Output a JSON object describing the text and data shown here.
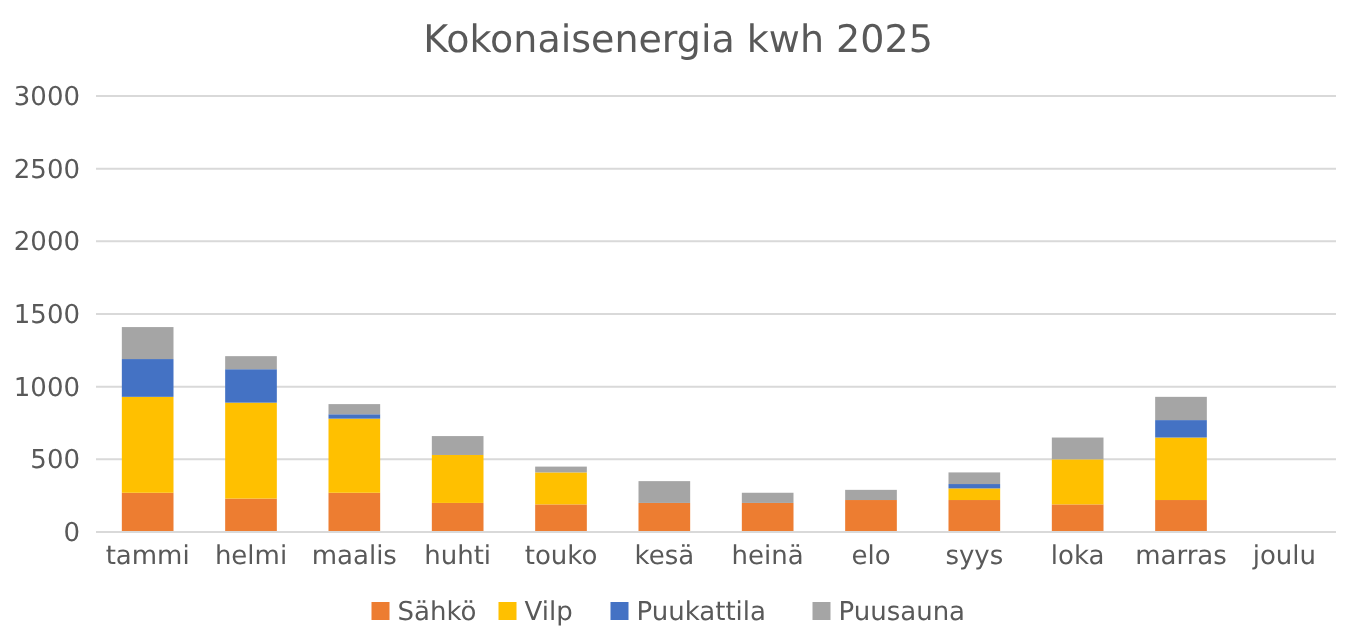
{
  "chart_data": {
    "type": "bar",
    "title": "Kokonaisenergia kwh 2025",
    "stacked": true,
    "categories": [
      "tammi",
      "helmi",
      "maalis",
      "huhti",
      "touko",
      "kesä",
      "heinä",
      "elo",
      "syys",
      "loka",
      "marras",
      "joulu"
    ],
    "series": [
      {
        "name": "Sähkö",
        "color": "#ed7d31",
        "values": [
          270,
          230,
          270,
          200,
          190,
          200,
          200,
          220,
          220,
          190,
          220,
          0
        ]
      },
      {
        "name": "Vilp",
        "color": "#ffc000",
        "values": [
          660,
          660,
          510,
          330,
          220,
          0,
          0,
          0,
          80,
          310,
          430,
          0
        ]
      },
      {
        "name": "Puukattila",
        "color": "#4472c4",
        "values": [
          260,
          230,
          30,
          0,
          0,
          0,
          0,
          0,
          30,
          0,
          120,
          0
        ]
      },
      {
        "name": "Puusauna",
        "color": "#a5a5a5",
        "values": [
          220,
          90,
          70,
          130,
          40,
          150,
          70,
          70,
          80,
          150,
          160,
          0
        ]
      }
    ],
    "ylim": [
      0,
      3000
    ],
    "yticks": [
      0,
      500,
      1000,
      1500,
      2000,
      2500,
      3000
    ],
    "grid": "y",
    "legend": "bottom"
  }
}
